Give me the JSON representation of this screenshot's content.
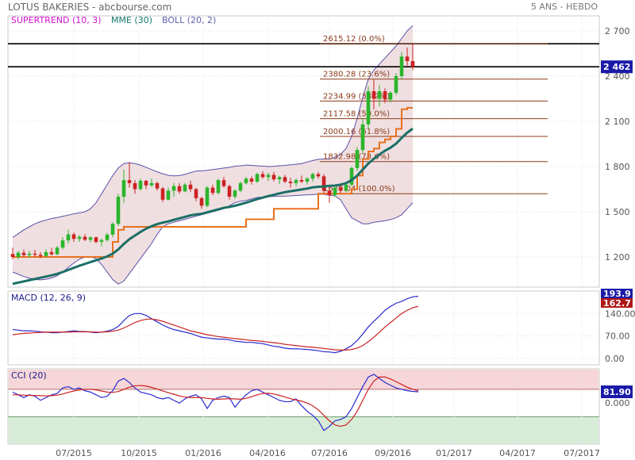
{
  "header": {
    "title": "LOTUS BAKERIES - abcbourse.com",
    "period": "5 ANS - HEBDO",
    "indicators": [
      {
        "label": "SUPERTREND (10, 3)",
        "color": "#d010d0"
      },
      {
        "label": "MME (30)",
        "color": "#137a6c"
      },
      {
        "label": "BOLL (20, 2)",
        "color": "#8080c0"
      }
    ]
  },
  "colors": {
    "up": "#2bb52b",
    "down": "#cc2222",
    "ema": "#1b6f66",
    "supertrend": "#e8701e",
    "bollinger": "#5a50a8",
    "bollinger_fill": "#ecd9dc",
    "fib": "#8b3a1a",
    "macd": "#2a2ad0",
    "signal": "#cc2020",
    "cci_over": "#f6d6d8",
    "cci_under": "#d7ecd7"
  },
  "chart_data": [
    {
      "id": "price",
      "type": "candlestick",
      "title": "LOTUS BAKERIES",
      "ylim": [
        1000,
        2800
      ],
      "yticks": [
        1200,
        1500,
        1800,
        2100,
        2400,
        2700
      ],
      "ytick_labels": [
        "1 200",
        "1 500",
        "1 800",
        "2 100",
        "2 400",
        "2 700"
      ],
      "x_categories": [
        "07/2015",
        "10/2015",
        "01/2016",
        "04/2016",
        "07/2016",
        "09/2016",
        "01/2017",
        "04/2017",
        "07/2017"
      ],
      "xlabel": "",
      "ylabel": "",
      "last_price": "2 462",
      "last_value": 2462,
      "resistance": 2615,
      "fibonacci": [
        {
          "value": 2615.12,
          "label": "2615.12  (0.0%)"
        },
        {
          "value": 2380.28,
          "label": "2380.28  (23.6%)"
        },
        {
          "value": 2234.99,
          "label": "2234.99  (38.2%)"
        },
        {
          "value": 2117.58,
          "label": "2117.58  (50.0%)"
        },
        {
          "value": 2000.16,
          "label": "2000.16  (61.8%)"
        },
        {
          "value": 1832.98,
          "label": "1832.98  (78.6%)"
        },
        {
          "value": 1620.04,
          "label": "1620.04  (100.0%)"
        }
      ],
      "candles": [
        {
          "o": 1220,
          "h": 1262,
          "l": 1185,
          "c": 1200
        },
        {
          "o": 1200,
          "h": 1240,
          "l": 1182,
          "c": 1228
        },
        {
          "o": 1228,
          "h": 1250,
          "l": 1200,
          "c": 1212
        },
        {
          "o": 1212,
          "h": 1242,
          "l": 1195,
          "c": 1222
        },
        {
          "o": 1222,
          "h": 1248,
          "l": 1204,
          "c": 1214
        },
        {
          "o": 1214,
          "h": 1232,
          "l": 1193,
          "c": 1206
        },
        {
          "o": 1206,
          "h": 1252,
          "l": 1196,
          "c": 1232
        },
        {
          "o": 1232,
          "h": 1262,
          "l": 1210,
          "c": 1218
        },
        {
          "o": 1218,
          "h": 1274,
          "l": 1212,
          "c": 1262
        },
        {
          "o": 1262,
          "h": 1330,
          "l": 1250,
          "c": 1310
        },
        {
          "o": 1310,
          "h": 1380,
          "l": 1290,
          "c": 1350
        },
        {
          "o": 1350,
          "h": 1362,
          "l": 1300,
          "c": 1320
        },
        {
          "o": 1320,
          "h": 1345,
          "l": 1300,
          "c": 1334
        },
        {
          "o": 1334,
          "h": 1352,
          "l": 1305,
          "c": 1314
        },
        {
          "o": 1314,
          "h": 1338,
          "l": 1298,
          "c": 1330
        },
        {
          "o": 1330,
          "h": 1336,
          "l": 1290,
          "c": 1300
        },
        {
          "o": 1300,
          "h": 1322,
          "l": 1270,
          "c": 1312
        },
        {
          "o": 1312,
          "h": 1360,
          "l": 1302,
          "c": 1348
        },
        {
          "o": 1348,
          "h": 1430,
          "l": 1332,
          "c": 1420
        },
        {
          "o": 1420,
          "h": 1620,
          "l": 1405,
          "c": 1600
        },
        {
          "o": 1600,
          "h": 1780,
          "l": 1560,
          "c": 1710
        },
        {
          "o": 1710,
          "h": 1830,
          "l": 1660,
          "c": 1690
        },
        {
          "o": 1690,
          "h": 1710,
          "l": 1620,
          "c": 1650
        },
        {
          "o": 1650,
          "h": 1720,
          "l": 1640,
          "c": 1705
        },
        {
          "o": 1705,
          "h": 1712,
          "l": 1650,
          "c": 1675
        },
        {
          "o": 1675,
          "h": 1720,
          "l": 1665,
          "c": 1690
        },
        {
          "o": 1690,
          "h": 1700,
          "l": 1640,
          "c": 1655
        },
        {
          "o": 1655,
          "h": 1665,
          "l": 1565,
          "c": 1580
        },
        {
          "o": 1580,
          "h": 1660,
          "l": 1575,
          "c": 1640
        },
        {
          "o": 1640,
          "h": 1690,
          "l": 1600,
          "c": 1670
        },
        {
          "o": 1670,
          "h": 1690,
          "l": 1620,
          "c": 1635
        },
        {
          "o": 1635,
          "h": 1690,
          "l": 1630,
          "c": 1680
        },
        {
          "o": 1680,
          "h": 1705,
          "l": 1630,
          "c": 1650
        },
        {
          "o": 1650,
          "h": 1660,
          "l": 1570,
          "c": 1590
        },
        {
          "o": 1590,
          "h": 1600,
          "l": 1520,
          "c": 1540
        },
        {
          "o": 1540,
          "h": 1670,
          "l": 1530,
          "c": 1660
        },
        {
          "o": 1660,
          "h": 1680,
          "l": 1610,
          "c": 1625
        },
        {
          "o": 1625,
          "h": 1720,
          "l": 1615,
          "c": 1710
        },
        {
          "o": 1710,
          "h": 1730,
          "l": 1660,
          "c": 1670
        },
        {
          "o": 1670,
          "h": 1680,
          "l": 1580,
          "c": 1600
        },
        {
          "o": 1600,
          "h": 1650,
          "l": 1585,
          "c": 1640
        },
        {
          "o": 1640,
          "h": 1700,
          "l": 1630,
          "c": 1690
        },
        {
          "o": 1690,
          "h": 1730,
          "l": 1680,
          "c": 1720
        },
        {
          "o": 1720,
          "h": 1735,
          "l": 1680,
          "c": 1700
        },
        {
          "o": 1700,
          "h": 1760,
          "l": 1690,
          "c": 1750
        },
        {
          "o": 1750,
          "h": 1770,
          "l": 1720,
          "c": 1730
        },
        {
          "o": 1730,
          "h": 1760,
          "l": 1705,
          "c": 1745
        },
        {
          "o": 1745,
          "h": 1765,
          "l": 1700,
          "c": 1715
        },
        {
          "o": 1715,
          "h": 1740,
          "l": 1685,
          "c": 1730
        },
        {
          "o": 1730,
          "h": 1745,
          "l": 1690,
          "c": 1700
        },
        {
          "o": 1700,
          "h": 1725,
          "l": 1660,
          "c": 1690
        },
        {
          "o": 1690,
          "h": 1720,
          "l": 1670,
          "c": 1710
        },
        {
          "o": 1710,
          "h": 1740,
          "l": 1690,
          "c": 1700
        },
        {
          "o": 1700,
          "h": 1730,
          "l": 1680,
          "c": 1720
        },
        {
          "o": 1720,
          "h": 1760,
          "l": 1700,
          "c": 1750
        },
        {
          "o": 1750,
          "h": 1765,
          "l": 1720,
          "c": 1735
        },
        {
          "o": 1735,
          "h": 1750,
          "l": 1620,
          "c": 1640
        },
        {
          "o": 1640,
          "h": 1680,
          "l": 1560,
          "c": 1610
        },
        {
          "o": 1610,
          "h": 1670,
          "l": 1600,
          "c": 1660
        },
        {
          "o": 1660,
          "h": 1680,
          "l": 1620,
          "c": 1640
        },
        {
          "o": 1640,
          "h": 1690,
          "l": 1630,
          "c": 1680
        },
        {
          "o": 1680,
          "h": 1800,
          "l": 1670,
          "c": 1790
        },
        {
          "o": 1790,
          "h": 1930,
          "l": 1770,
          "c": 1910
        },
        {
          "o": 1910,
          "h": 2120,
          "l": 1890,
          "c": 2080
        },
        {
          "o": 2080,
          "h": 2330,
          "l": 2050,
          "c": 2300
        },
        {
          "o": 2300,
          "h": 2380,
          "l": 2180,
          "c": 2250
        },
        {
          "o": 2250,
          "h": 2340,
          "l": 2200,
          "c": 2300
        },
        {
          "o": 2300,
          "h": 2320,
          "l": 2220,
          "c": 2245
        },
        {
          "o": 2245,
          "h": 2300,
          "l": 2225,
          "c": 2290
        },
        {
          "o": 2290,
          "h": 2420,
          "l": 2275,
          "c": 2400
        },
        {
          "o": 2400,
          "h": 2560,
          "l": 2380,
          "c": 2530
        },
        {
          "o": 2530,
          "h": 2590,
          "l": 2470,
          "c": 2500
        },
        {
          "o": 2500,
          "h": 2615,
          "l": 2440,
          "c": 2462
        }
      ],
      "ema_30": [
        1022,
        1030,
        1038,
        1046,
        1054,
        1062,
        1070,
        1078,
        1088,
        1100,
        1114,
        1128,
        1142,
        1154,
        1166,
        1178,
        1190,
        1204,
        1222,
        1250,
        1286,
        1318,
        1342,
        1366,
        1388,
        1404,
        1418,
        1428,
        1436,
        1446,
        1456,
        1466,
        1476,
        1482,
        1486,
        1496,
        1506,
        1516,
        1526,
        1532,
        1540,
        1550,
        1560,
        1572,
        1584,
        1594,
        1604,
        1612,
        1622,
        1630,
        1636,
        1642,
        1648,
        1654,
        1662,
        1666,
        1668,
        1672,
        1674,
        1680,
        1690,
        1710,
        1740,
        1780,
        1820,
        1852,
        1880,
        1905,
        1925,
        1952,
        1990,
        2025,
        2052
      ],
      "supertrend": [
        1200,
        1200,
        1200,
        1200,
        1200,
        1200,
        1200,
        1200,
        1200,
        1200,
        1200,
        1200,
        1200,
        1200,
        1200,
        1200,
        1200,
        1200,
        1300,
        1380,
        1400,
        1400,
        1400,
        1400,
        1400,
        1400,
        1400,
        1400,
        1400,
        1400,
        1400,
        1400,
        1400,
        1400,
        1400,
        1400,
        1400,
        1400,
        1400,
        1400,
        1400,
        1400,
        1450,
        1450,
        1450,
        1450,
        1450,
        1520,
        1520,
        1520,
        1520,
        1520,
        1520,
        1520,
        1520,
        1620,
        1620,
        1620,
        1620,
        1620,
        1620,
        1650,
        1740,
        1850,
        1900,
        1920,
        1960,
        1980,
        2000,
        2050,
        2180,
        2190,
        2190
      ],
      "boll_upper": [
        1330,
        1355,
        1380,
        1400,
        1420,
        1435,
        1445,
        1455,
        1462,
        1470,
        1478,
        1486,
        1493,
        1500,
        1520,
        1560,
        1620,
        1680,
        1740,
        1790,
        1820,
        1825,
        1820,
        1810,
        1795,
        1780,
        1765,
        1752,
        1742,
        1738,
        1740,
        1748,
        1760,
        1770,
        1772,
        1775,
        1780,
        1785,
        1790,
        1795,
        1802,
        1805,
        1810,
        1808,
        1805,
        1803,
        1800,
        1802,
        1805,
        1808,
        1812,
        1815,
        1820,
        1830,
        1840,
        1848,
        1850,
        1850,
        1860,
        1880,
        1920,
        2000,
        2120,
        2260,
        2380,
        2440,
        2480,
        2520,
        2560,
        2600,
        2650,
        2700,
        2735
      ],
      "boll_lower": [
        1100,
        1085,
        1070,
        1060,
        1050,
        1048,
        1052,
        1060,
        1075,
        1100,
        1130,
        1160,
        1185,
        1200,
        1200,
        1190,
        1150,
        1100,
        1050,
        1020,
        1040,
        1090,
        1140,
        1190,
        1240,
        1290,
        1350,
        1400,
        1420,
        1430,
        1440,
        1450,
        1460,
        1470,
        1480,
        1490,
        1500,
        1510,
        1520,
        1540,
        1560,
        1570,
        1575,
        1585,
        1595,
        1598,
        1600,
        1602,
        1603,
        1604,
        1605,
        1608,
        1610,
        1612,
        1614,
        1616,
        1616,
        1610,
        1605,
        1580,
        1520,
        1460,
        1440,
        1420,
        1420,
        1430,
        1435,
        1440,
        1448,
        1460,
        1480,
        1520,
        1560
      ]
    },
    {
      "id": "macd",
      "type": "line",
      "title": "MACD (12, 26, 9)",
      "ylim": [
        -20,
        210
      ],
      "yticks": [
        0,
        70,
        140
      ],
      "ytick_labels": [
        "0.00",
        "70.00",
        "140.00"
      ],
      "last_macd": "193.9",
      "last_signal": "162.7",
      "series": [
        {
          "name": "MACD",
          "color": "#2a2ad0",
          "values": [
            90,
            88,
            86,
            86,
            85,
            83,
            82,
            80,
            80,
            82,
            84,
            86,
            84,
            84,
            82,
            80,
            82,
            85,
            90,
            100,
            118,
            134,
            140,
            140,
            134,
            124,
            114,
            104,
            96,
            90,
            86,
            82,
            78,
            72,
            66,
            64,
            62,
            60,
            60,
            58,
            54,
            52,
            50,
            50,
            48,
            46,
            42,
            38,
            36,
            32,
            30,
            30,
            29,
            28,
            26,
            24,
            21,
            20,
            18,
            22,
            30,
            40,
            56,
            76,
            98,
            116,
            132,
            150,
            162,
            172,
            178,
            186,
            192,
            193.9
          ]
        },
        {
          "name": "Signal",
          "color": "#cc2020",
          "values": [
            74,
            76,
            78,
            79,
            80,
            81,
            82,
            82,
            82,
            82,
            82,
            83,
            83,
            83,
            83,
            82,
            82,
            83,
            85,
            88,
            95,
            103,
            112,
            118,
            122,
            123,
            120,
            116,
            110,
            104,
            98,
            92,
            86,
            82,
            78,
            74,
            71,
            68,
            66,
            64,
            62,
            60,
            58,
            56,
            55,
            53,
            51,
            49,
            47,
            44,
            42,
            40,
            38,
            36,
            35,
            33,
            31,
            29,
            27,
            26,
            26,
            28,
            32,
            40,
            52,
            66,
            82,
            98,
            112,
            126,
            140,
            150,
            158,
            162.7
          ]
        }
      ]
    },
    {
      "id": "cci",
      "type": "line",
      "title": "CCI (20)",
      "ylim": [
        -300,
        250
      ],
      "yticks": [
        0
      ],
      "ytick_labels": [
        "0.000"
      ],
      "last_cci": "81.90",
      "overbought": 100,
      "oversold": -100,
      "series": [
        {
          "name": "CCI",
          "color": "#2a2ad0",
          "values": [
            80,
            60,
            40,
            60,
            50,
            20,
            40,
            60,
            70,
            110,
            120,
            100,
            110,
            90,
            80,
            60,
            40,
            50,
            90,
            160,
            180,
            150,
            110,
            80,
            70,
            60,
            40,
            30,
            40,
            20,
            0,
            30,
            50,
            60,
            30,
            -40,
            20,
            40,
            50,
            40,
            -30,
            20,
            60,
            90,
            100,
            80,
            60,
            40,
            20,
            10,
            10,
            30,
            -20,
            -60,
            -90,
            -130,
            -200,
            -170,
            -130,
            -120,
            -100,
            -40,
            40,
            120,
            190,
            210,
            180,
            150,
            130,
            110,
            100,
            90,
            85,
            81.9
          ]
        },
        {
          "name": "Signal",
          "color": "#cc2020",
          "values": [
            60,
            60,
            58,
            56,
            55,
            54,
            52,
            54,
            58,
            66,
            78,
            88,
            96,
            100,
            100,
            96,
            88,
            80,
            78,
            84,
            100,
            116,
            126,
            128,
            124,
            114,
            102,
            88,
            76,
            64,
            52,
            44,
            40,
            40,
            40,
            34,
            30,
            28,
            30,
            32,
            30,
            28,
            34,
            46,
            60,
            70,
            72,
            66,
            56,
            44,
            32,
            22,
            14,
            0,
            -20,
            -50,
            -90,
            -130,
            -160,
            -170,
            -160,
            -120,
            -60,
            20,
            100,
            160,
            190,
            190,
            176,
            156,
            136,
            116,
            100,
            90
          ]
        }
      ]
    }
  ]
}
